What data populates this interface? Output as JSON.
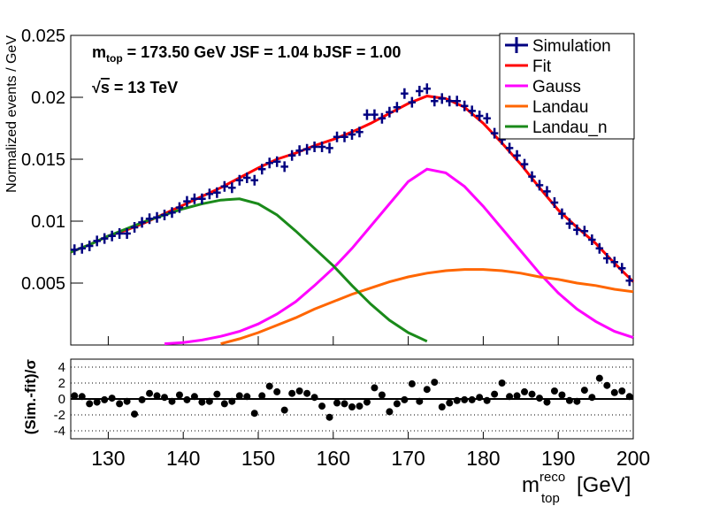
{
  "chart_data": [
    {
      "type": "fit",
      "ylabel": "Normalized events / GeV",
      "annotations": [
        [
          "m",
          "top",
          " = 173.50 GeV  JSF = 1.04   bJSF = 1.00"
        ],
        [
          "√",
          "s",
          " = 13 TeV"
        ]
      ],
      "xlim": [
        125,
        200
      ],
      "ylim": [
        0,
        0.025
      ],
      "yticks": [
        0.005,
        0.01,
        0.015,
        0.02,
        0.025
      ],
      "x": [
        125,
        127.5,
        130,
        132.5,
        135,
        137.5,
        140,
        142.5,
        145,
        147.5,
        150,
        152.5,
        155,
        157.5,
        160,
        162.5,
        165,
        167.5,
        170,
        172.5,
        175,
        177.5,
        180,
        182.5,
        185,
        187.5,
        190,
        192.5,
        195,
        197.5,
        200
      ],
      "series": [
        {
          "name": "Simulation",
          "color": "#000080",
          "style": "points",
          "x": [
            125.5,
            126.5,
            127.5,
            128.5,
            129.5,
            130.5,
            131.5,
            132.5,
            133.5,
            134.5,
            135.5,
            136.5,
            137.5,
            138.5,
            139.5,
            140.5,
            141.5,
            142.5,
            143.5,
            144.5,
            145.5,
            146.5,
            147.5,
            148.5,
            149.5,
            150.5,
            151.5,
            152.5,
            153.5,
            154.5,
            155.5,
            156.5,
            157.5,
            158.5,
            159.5,
            160.5,
            161.5,
            162.5,
            163.5,
            164.5,
            165.5,
            166.5,
            167.5,
            168.5,
            169.5,
            170.5,
            171.5,
            172.5,
            173.5,
            174.5,
            175.5,
            176.5,
            177.5,
            178.5,
            179.5,
            180.5,
            181.5,
            182.5,
            183.5,
            184.5,
            185.5,
            186.5,
            187.5,
            188.5,
            189.5,
            190.5,
            191.5,
            192.5,
            193.5,
            194.5,
            195.5,
            196.5,
            197.5,
            198.5,
            199.5
          ],
          "values": [
            0.0077,
            0.0078,
            0.008,
            0.0084,
            0.0086,
            0.0088,
            0.009,
            0.009,
            0.0095,
            0.0099,
            0.0102,
            0.0103,
            0.0105,
            0.0107,
            0.0111,
            0.0116,
            0.0118,
            0.0118,
            0.0122,
            0.0123,
            0.0128,
            0.0127,
            0.0133,
            0.0135,
            0.0133,
            0.0142,
            0.0147,
            0.0148,
            0.0144,
            0.0153,
            0.0157,
            0.0158,
            0.016,
            0.016,
            0.0159,
            0.0168,
            0.0168,
            0.017,
            0.0172,
            0.0186,
            0.0186,
            0.0183,
            0.0188,
            0.0192,
            0.0203,
            0.0196,
            0.0205,
            0.0207,
            0.0197,
            0.0199,
            0.0197,
            0.0197,
            0.0193,
            0.0189,
            0.0185,
            0.0183,
            0.0171,
            0.0166,
            0.0159,
            0.0153,
            0.0146,
            0.0136,
            0.0129,
            0.0124,
            0.0115,
            0.0106,
            0.0098,
            0.0093,
            0.0092,
            0.0085,
            0.0078,
            0.007,
            0.0067,
            0.0062,
            0.0052
          ]
        },
        {
          "name": "Fit",
          "color": "#ff0000",
          "style": "line",
          "values": [
            0.0075,
            0.0081,
            0.0088,
            0.0093,
            0.0099,
            0.0106,
            0.0113,
            0.012,
            0.0127,
            0.0135,
            0.0143,
            0.015,
            0.0155,
            0.0161,
            0.0166,
            0.0172,
            0.0179,
            0.0187,
            0.0195,
            0.0201,
            0.0199,
            0.0192,
            0.0179,
            0.0163,
            0.0146,
            0.0127,
            0.0109,
            0.0095,
            0.0082,
            0.0066,
            0.0051
          ]
        },
        {
          "name": "Gauss",
          "color": "#ff00ff",
          "style": "line",
          "values": [
            null,
            null,
            null,
            null,
            null,
            0.0001,
            0.0002,
            0.0004,
            0.0007,
            0.0011,
            0.0017,
            0.0025,
            0.0035,
            0.0048,
            0.0062,
            0.0078,
            0.0096,
            0.0114,
            0.0132,
            0.0142,
            0.0139,
            0.0128,
            0.0112,
            0.0094,
            0.0076,
            0.0058,
            0.0042,
            0.0029,
            0.0019,
            0.0011,
            0.0006
          ]
        },
        {
          "name": "Landau",
          "color": "#ff6600",
          "style": "line",
          "values": [
            null,
            null,
            null,
            null,
            null,
            null,
            null,
            null,
            0.0001,
            0.0005,
            0.001,
            0.0016,
            0.0022,
            0.0029,
            0.0035,
            0.0041,
            0.0046,
            0.0051,
            0.0055,
            0.0058,
            0.006,
            0.0061,
            0.0061,
            0.006,
            0.0058,
            0.0055,
            0.0053,
            0.005,
            0.0048,
            0.0045,
            0.0043
          ]
        },
        {
          "name": "Landau_n",
          "color": "#1a8a1a",
          "style": "line",
          "values": [
            0.0075,
            0.0081,
            0.0088,
            0.0094,
            0.01,
            0.0105,
            0.011,
            0.0114,
            0.0117,
            0.0118,
            0.0114,
            0.0105,
            0.0092,
            0.0078,
            0.0064,
            0.0048,
            0.0033,
            0.002,
            0.001,
            0.0003,
            null,
            null,
            null,
            null,
            null,
            null,
            null,
            null,
            null,
            null,
            null
          ]
        }
      ]
    },
    {
      "type": "scatter",
      "ylabel": "(Sim.-fit)/σ",
      "xlabel": [
        "m",
        "reco",
        "top",
        "[GeV]"
      ],
      "xlim": [
        125,
        200
      ],
      "xticks": [
        130,
        140,
        150,
        160,
        170,
        180,
        190,
        200
      ],
      "ylim": [
        -5,
        5
      ],
      "yticks": [
        -4,
        -2,
        0,
        2,
        4
      ],
      "color": "#000000",
      "x": [
        125.5,
        126.5,
        127.5,
        128.5,
        129.5,
        130.5,
        131.5,
        132.5,
        133.5,
        134.5,
        135.5,
        136.5,
        137.5,
        138.5,
        139.5,
        140.5,
        141.5,
        142.5,
        143.5,
        144.5,
        145.5,
        146.5,
        147.5,
        148.5,
        149.5,
        150.5,
        151.5,
        152.5,
        153.5,
        154.5,
        155.5,
        156.5,
        157.5,
        158.5,
        159.5,
        160.5,
        161.5,
        162.5,
        163.5,
        164.5,
        165.5,
        166.5,
        167.5,
        168.5,
        169.5,
        170.5,
        171.5,
        172.5,
        173.5,
        174.5,
        175.5,
        176.5,
        177.5,
        178.5,
        179.5,
        180.5,
        181.5,
        182.5,
        183.5,
        184.5,
        185.5,
        186.5,
        187.5,
        188.5,
        189.5,
        190.5,
        191.5,
        192.5,
        193.5,
        194.5,
        195.5,
        196.5,
        197.5,
        198.5,
        199.5
      ],
      "values": [
        0.4,
        0.3,
        -0.6,
        -0.4,
        -0.1,
        0.1,
        -0.6,
        -0.3,
        -1.9,
        -0.1,
        0.7,
        0.4,
        0.2,
        -0.3,
        0.5,
        -0.1,
        0.3,
        -0.4,
        -0.3,
        0.6,
        -0.6,
        -0.3,
        0.4,
        0.3,
        -1.8,
        0.4,
        1.6,
        0.9,
        -1.4,
        0.7,
        1.0,
        0.7,
        0.2,
        -0.9,
        -2.3,
        -0.5,
        -0.6,
        -1.0,
        -0.9,
        -0.4,
        1.4,
        0.5,
        -1.6,
        -0.6,
        -0.1,
        1.9,
        -0.3,
        1.2,
        2.1,
        -1.0,
        -0.5,
        -0.2,
        -0.1,
        -0.1,
        0.2,
        -0.2,
        0.6,
        2.0,
        0.3,
        0.4,
        0.9,
        0.6,
        0.1,
        -0.4,
        1.0,
        0.5,
        -0.2,
        -0.3,
        1.1,
        0.2,
        2.6,
        1.7,
        0.8,
        1.0,
        0.3
      ]
    }
  ]
}
